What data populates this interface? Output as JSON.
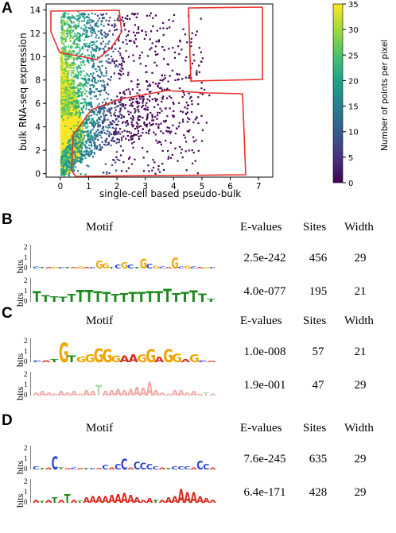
{
  "panels": {
    "A": "A",
    "B": "B",
    "C": "C",
    "D": "D"
  },
  "chart_data": {
    "type": "heatmap",
    "xlabel": "single-cell based pseudo-bulk",
    "ylabel": "bulk RNA-seq expression",
    "xlim": [
      -0.5,
      7.5
    ],
    "ylim": [
      -0.3,
      14.5
    ],
    "xticks": [
      "0",
      "1",
      "2",
      "3",
      "4",
      "5",
      "6",
      "7"
    ],
    "yticks": [
      "0",
      "2",
      "4",
      "6",
      "8",
      "10",
      "12",
      "14"
    ],
    "colorbar": {
      "label": "Number of points per pixel",
      "ticks": [
        "0",
        "5",
        "10",
        "15",
        "20",
        "25",
        "30",
        "35"
      ],
      "range": [
        0,
        35
      ],
      "colormap": "viridis"
    },
    "highlight_color": "#e8302a"
  },
  "motif_table": {
    "headers": {
      "motif": "Motif",
      "evalues": "E-values",
      "sites": "Sites",
      "width": "Width"
    },
    "bits_label": "bits",
    "groups": [
      {
        "panel": "B",
        "rows": [
          {
            "evalue": "2.5e-242",
            "sites": "456",
            "width": "29"
          },
          {
            "evalue": "4.0e-077",
            "sites": "195",
            "width": "21"
          }
        ]
      },
      {
        "panel": "C",
        "rows": [
          {
            "evalue": "1.0e-008",
            "sites": "57",
            "width": "21"
          },
          {
            "evalue": "1.9e-001",
            "sites": "47",
            "width": "29"
          }
        ]
      },
      {
        "panel": "D",
        "rows": [
          {
            "evalue": "7.6e-245",
            "sites": "635",
            "width": "29"
          },
          {
            "evalue": "6.4e-171",
            "sites": "428",
            "width": "29"
          }
        ]
      }
    ],
    "logo_axis_ticks": [
      "2",
      "1",
      "0"
    ]
  },
  "colors": {
    "A": "#e8a31a",
    "C": "#2742d6",
    "G": "#f0a500",
    "T": "#d42a1c",
    "T_green": "#1a8a1a",
    "faded_red": "#f3a7a0",
    "faded_green": "#a6d9a6"
  }
}
